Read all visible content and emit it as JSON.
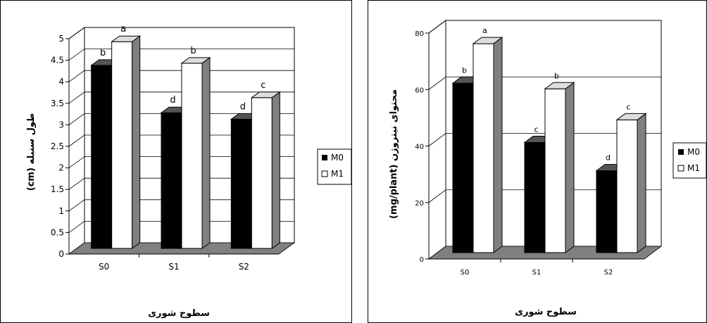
{
  "chart_data": [
    {
      "type": "bar",
      "categories": [
        "S0",
        "S1",
        "S2"
      ],
      "series": [
        {
          "name": "M0",
          "values": [
            4.25,
            3.15,
            3.0
          ],
          "letters": [
            "b",
            "d",
            "d"
          ],
          "color": "#000000"
        },
        {
          "name": "M1",
          "values": [
            4.8,
            4.3,
            3.5
          ],
          "letters": [
            "a",
            "b",
            "c"
          ],
          "color": "#ffffff"
        }
      ],
      "title": "",
      "xlabel": "سطوح شوری",
      "ylabel": "طول سنبله (cm)",
      "ylim": [
        0,
        5
      ],
      "yticks": [
        "0",
        "0.5",
        "1",
        "1.5",
        "2",
        "2.5",
        "3",
        "3.5",
        "4",
        "4.5",
        "5"
      ],
      "grid": true,
      "legend": "right"
    },
    {
      "type": "bar",
      "categories": [
        "S0",
        "S1",
        "S2"
      ],
      "series": [
        {
          "name": "M0",
          "values": [
            60,
            39,
            29
          ],
          "letters": [
            "b",
            "c",
            "d"
          ],
          "color": "#000000"
        },
        {
          "name": "M1",
          "values": [
            74,
            58,
            47
          ],
          "letters": [
            "a",
            "b",
            "c"
          ],
          "color": "#ffffff"
        }
      ],
      "title": "",
      "xlabel": "سطوح شوری",
      "ylabel": "محتوای نیتروژن (mg/plant)",
      "ylim": [
        0,
        80
      ],
      "yticks": [
        "0",
        "20",
        "40",
        "60",
        "80"
      ],
      "grid": true,
      "legend": "right"
    }
  ],
  "colors": {
    "floor": "#808080",
    "side": "#808080",
    "top_dark": "#555555",
    "top_light": "#dddddd"
  }
}
